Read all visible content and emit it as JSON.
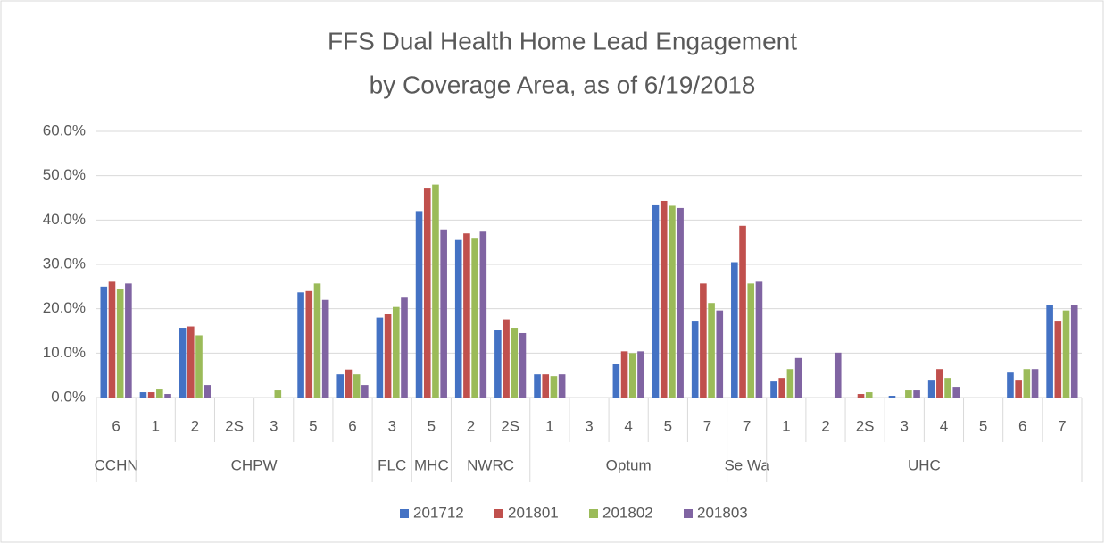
{
  "chart_data": {
    "type": "bar",
    "title": [
      "FFS Dual Health Home Lead Engagement",
      "by Coverage Area, as of 6/19/2018"
    ],
    "groups": [
      {
        "name": "CCHN",
        "categories": [
          "6"
        ]
      },
      {
        "name": "CHPW",
        "categories": [
          "1",
          "2",
          "2S",
          "3",
          "5",
          "6"
        ]
      },
      {
        "name": "FLC",
        "categories": [
          "3"
        ]
      },
      {
        "name": "MHC",
        "categories": [
          "5"
        ]
      },
      {
        "name": "NWRC",
        "categories": [
          "2",
          "2S"
        ]
      },
      {
        "name": "Optum",
        "categories": [
          "1",
          "3",
          "4",
          "5",
          "7"
        ]
      },
      {
        "name": "Se Wa",
        "categories": [
          "7"
        ]
      },
      {
        "name": "UHC",
        "categories": [
          "1",
          "2",
          "2S",
          "3",
          "4",
          "5",
          "6",
          "7"
        ]
      }
    ],
    "series": [
      {
        "name": "201712",
        "color": "#4472c4",
        "values": [
          25.0,
          1.2,
          15.7,
          0,
          0,
          23.7,
          5.2,
          18.0,
          42.0,
          35.5,
          15.3,
          5.2,
          0,
          7.6,
          43.5,
          17.3,
          30.5,
          3.6,
          0,
          0,
          0.4,
          4.0,
          0,
          5.6,
          20.9
        ]
      },
      {
        "name": "201801",
        "color": "#c0504d",
        "values": [
          26.1,
          1.2,
          16.0,
          0,
          0,
          24.0,
          6.3,
          18.9,
          47.1,
          37.0,
          17.6,
          5.2,
          0,
          10.4,
          44.3,
          25.7,
          38.7,
          4.4,
          0,
          0.8,
          0,
          6.4,
          0,
          4.0,
          17.3
        ]
      },
      {
        "name": "201802",
        "color": "#9bbb59",
        "values": [
          24.5,
          1.8,
          14.0,
          0,
          1.6,
          25.7,
          5.2,
          20.4,
          48.0,
          36.0,
          15.7,
          4.8,
          0,
          10.0,
          43.2,
          21.3,
          25.7,
          6.4,
          0,
          1.2,
          1.6,
          4.4,
          0,
          6.4,
          19.6
        ]
      },
      {
        "name": "201803",
        "color": "#8064a2",
        "values": [
          25.7,
          0.8,
          2.8,
          0,
          0,
          22.0,
          2.8,
          22.5,
          37.9,
          37.4,
          14.5,
          5.2,
          0,
          10.4,
          42.7,
          19.6,
          26.1,
          8.9,
          10.1,
          0,
          1.6,
          2.4,
          0,
          6.4,
          20.9
        ]
      }
    ],
    "ylim": [
      0,
      60
    ],
    "yticks": [
      {
        "value": 0,
        "label": "0.0%"
      },
      {
        "value": 10,
        "label": "10.0%"
      },
      {
        "value": 20,
        "label": "20.0%"
      },
      {
        "value": 30,
        "label": "30.0%"
      },
      {
        "value": 40,
        "label": "40.0%"
      },
      {
        "value": 50,
        "label": "50.0%"
      },
      {
        "value": 60,
        "label": "60.0%"
      }
    ],
    "grid": true,
    "legend": "bottom"
  }
}
